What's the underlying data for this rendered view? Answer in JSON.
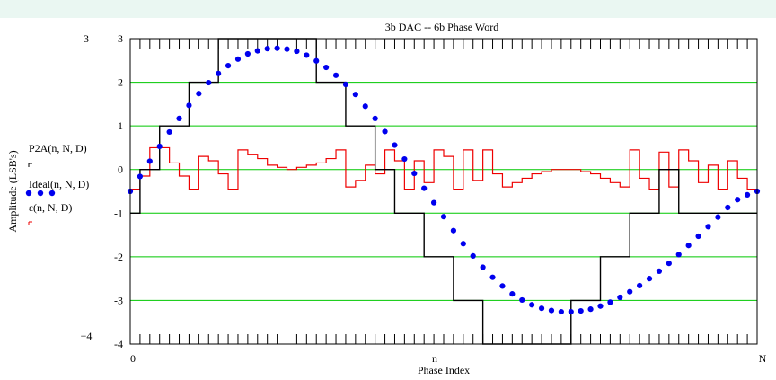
{
  "chart_data": {
    "type": "line",
    "title": "3b DAC -- 6b Phase Word",
    "xlabel": "Phase Index",
    "ylabel": "Amplitude (LSB's)",
    "xlim": [
      0,
      64
    ],
    "ylim": [
      -4,
      3
    ],
    "x_tick_labels": [
      "0",
      "n",
      "N"
    ],
    "y_tick_labels": [
      "3",
      "2",
      "1",
      "0",
      "-1",
      "-2",
      "-3",
      "-4"
    ],
    "y_axis_top_value_label": "3",
    "y_axis_bottom_value_label": "−4",
    "grid": true,
    "legend_position": "left",
    "colors": {
      "ideal": "#0000ee",
      "p2a": "#000000",
      "error": "#ee0000",
      "grid": "#00c800",
      "topbar": "#eaf7f2"
    },
    "series": [
      {
        "name": "P2A(n, N, D)",
        "style": "step",
        "x": [
          0,
          1,
          2,
          3,
          4,
          5,
          6,
          7,
          8,
          9,
          10,
          11,
          12,
          13,
          14,
          15,
          16,
          17,
          18,
          19,
          20,
          21,
          22,
          23,
          24,
          25,
          26,
          27,
          28,
          29,
          30,
          31,
          32,
          33,
          34,
          35,
          36,
          37,
          38,
          39,
          40,
          41,
          42,
          43,
          44,
          45,
          46,
          47,
          48,
          49,
          50,
          51,
          52,
          53,
          54,
          55,
          56,
          57,
          58,
          59,
          60,
          61,
          62,
          63
        ],
        "values": [
          -1,
          0,
          0,
          1,
          1,
          1,
          2,
          2,
          2,
          3,
          3,
          3,
          3,
          3,
          3,
          3,
          3,
          3,
          3,
          2,
          2,
          2,
          1,
          1,
          1,
          0,
          0,
          -1,
          -1,
          -1,
          -2,
          -2,
          -2,
          -3,
          -3,
          -3,
          -4,
          -4,
          -4,
          -4,
          -4,
          -4,
          -4,
          -4,
          -4,
          -3,
          -3,
          -3,
          -2,
          -2,
          -2,
          -1,
          -1,
          -1,
          0,
          0,
          -1,
          -1,
          -1,
          -1,
          -1,
          -1,
          -1,
          -1
        ]
      },
      {
        "name": "Ideal(n, N, D)",
        "style": "dots",
        "x": [
          0,
          1,
          2,
          3,
          4,
          5,
          6,
          7,
          8,
          9,
          10,
          11,
          12,
          13,
          14,
          15,
          16,
          17,
          18,
          19,
          20,
          21,
          22,
          23,
          24,
          25,
          26,
          27,
          28,
          29,
          30,
          31,
          32,
          33,
          34,
          35,
          36,
          37,
          38,
          39,
          40,
          41,
          42,
          43,
          44,
          45,
          46,
          47,
          48,
          49,
          50,
          51,
          52,
          53,
          54,
          55,
          56,
          57,
          58,
          59,
          60,
          61,
          62,
          63,
          64
        ],
        "values": [
          -0.5,
          -0.16,
          0.19,
          0.53,
          0.86,
          1.17,
          1.47,
          1.74,
          1.99,
          2.2,
          2.38,
          2.53,
          2.65,
          2.72,
          2.77,
          2.78,
          2.76,
          2.71,
          2.62,
          2.49,
          2.34,
          2.16,
          1.95,
          1.72,
          1.45,
          1.17,
          0.87,
          0.56,
          0.24,
          -0.09,
          -0.43,
          -0.76,
          -1.08,
          -1.4,
          -1.7,
          -1.98,
          -2.24,
          -2.47,
          -2.67,
          -2.85,
          -2.99,
          -3.1,
          -3.18,
          -3.23,
          -3.26,
          -3.26,
          -3.24,
          -3.2,
          -3.13,
          -3.04,
          -2.93,
          -2.8,
          -2.66,
          -2.5,
          -2.33,
          -2.15,
          -1.95,
          -1.74,
          -1.53,
          -1.31,
          -1.09,
          -0.87,
          -0.69,
          -0.58,
          -0.5
        ]
      },
      {
        "name": "ε(n, N, D)",
        "style": "step",
        "x": [
          0,
          1,
          2,
          3,
          4,
          5,
          6,
          7,
          8,
          9,
          10,
          11,
          12,
          13,
          14,
          15,
          16,
          17,
          18,
          19,
          20,
          21,
          22,
          23,
          24,
          25,
          26,
          27,
          28,
          29,
          30,
          31,
          32,
          33,
          34,
          35,
          36,
          37,
          38,
          39,
          40,
          41,
          42,
          43,
          44,
          45,
          46,
          47,
          48,
          49,
          50,
          51,
          52,
          53,
          54,
          55,
          56,
          57,
          58,
          59,
          60,
          61,
          62,
          63
        ],
        "values": [
          -0.45,
          -0.15,
          0.5,
          0.5,
          0.15,
          -0.15,
          -0.45,
          0.3,
          0.2,
          -0.1,
          -0.45,
          0.45,
          0.35,
          0.25,
          0.1,
          0.05,
          0.0,
          0.05,
          0.1,
          0.15,
          0.25,
          0.45,
          -0.4,
          -0.25,
          0.1,
          -0.1,
          0.45,
          0.2,
          -0.45,
          0.2,
          -0.3,
          0.45,
          0.3,
          -0.45,
          0.45,
          -0.25,
          0.45,
          -0.1,
          -0.4,
          -0.3,
          -0.2,
          -0.1,
          -0.05,
          0.0,
          0.0,
          0.0,
          -0.05,
          -0.1,
          -0.2,
          -0.3,
          -0.4,
          0.45,
          -0.2,
          -0.45,
          0.4,
          -0.4,
          0.45,
          0.2,
          -0.3,
          0.1,
          -0.45,
          0.2,
          -0.2,
          -0.45
        ]
      }
    ]
  }
}
